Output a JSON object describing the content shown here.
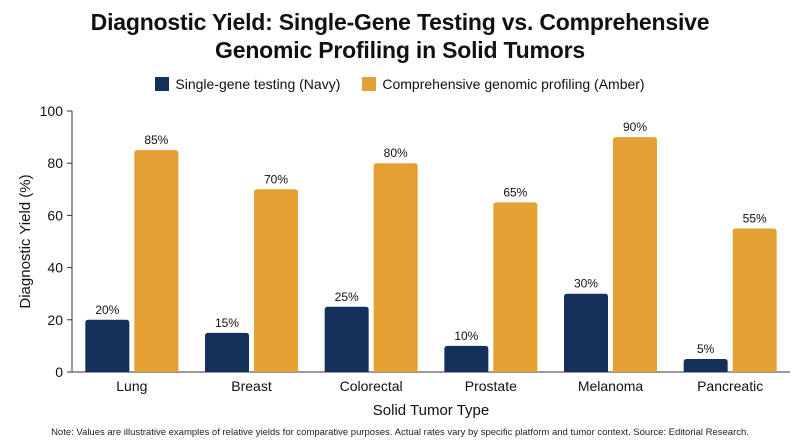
{
  "title_line1": "Diagnostic Yield: Single-Gene Testing vs. Comprehensive",
  "title_line2": "Genomic Profiling in Solid Tumors",
  "footnote": "Note: Values are illustrative examples of relative yields for comparative purposes. Actual rates vary by specific platform and tumor context. Source: Editorial Research.",
  "colors": {
    "navy": "#14305a",
    "amber": "#e3a133",
    "axis": "#333333",
    "text": "#111111"
  },
  "chart_data": {
    "type": "bar",
    "xlabel": "Solid Tumor Type",
    "ylabel": "Diagnostic Yield (%)",
    "ylim": [
      0,
      100
    ],
    "yticks": [
      0,
      20,
      40,
      60,
      80,
      100
    ],
    "grid": false,
    "legend_position": "top-center",
    "categories": [
      "Lung",
      "Breast",
      "Colorectal",
      "Prostate",
      "Melanoma",
      "Pancreatic"
    ],
    "series": [
      {
        "name": "Single-gene testing (Navy)",
        "color": "#14305a",
        "values": [
          20,
          15,
          25,
          10,
          30,
          5
        ],
        "labels": [
          "20%",
          "15%",
          "25%",
          "10%",
          "30%",
          "5%"
        ]
      },
      {
        "name": "Comprehensive genomic profiling (Amber)",
        "color": "#e3a133",
        "values": [
          85,
          70,
          80,
          65,
          90,
          55
        ],
        "labels": [
          "85%",
          "70%",
          "80%",
          "65%",
          "90%",
          "55%"
        ]
      }
    ]
  }
}
